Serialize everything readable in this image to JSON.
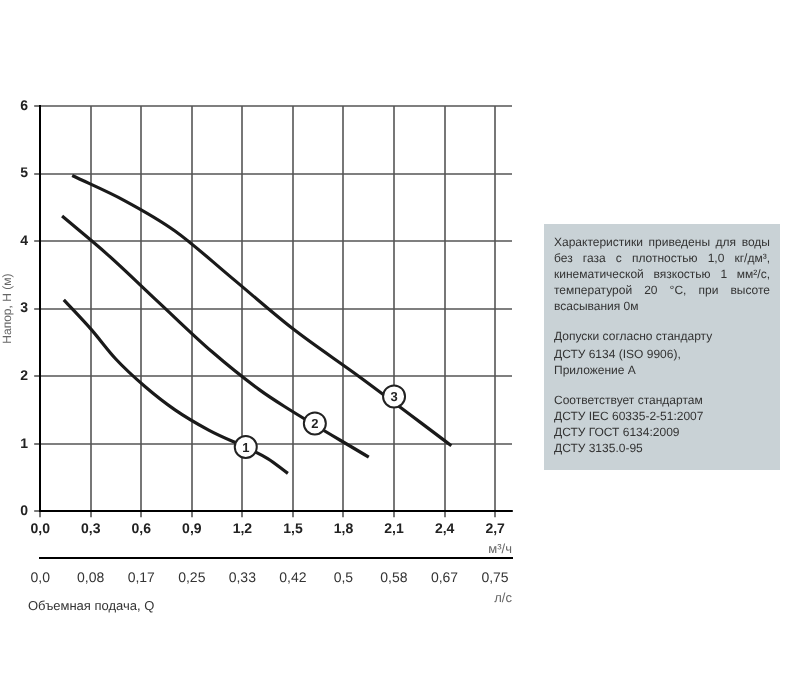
{
  "chart_data": {
    "type": "line",
    "xlabel": "м³/ч",
    "x2label": "л/с",
    "ylabel": "Напор, H (м)",
    "xlim": [
      0,
      2.8
    ],
    "xticks": [
      {
        "value": 0,
        "label": "0,0"
      },
      {
        "value": 0.3,
        "label": "0,3"
      },
      {
        "value": 0.6,
        "label": "0,6"
      },
      {
        "value": 0.9,
        "label": "0,9"
      },
      {
        "value": 1.2,
        "label": "1,2"
      },
      {
        "value": 1.5,
        "label": "1,5"
      },
      {
        "value": 1.8,
        "label": "1,8"
      },
      {
        "value": 2.1,
        "label": "2,1"
      },
      {
        "value": 2.4,
        "label": "2,4"
      },
      {
        "value": 2.7,
        "label": "2,7"
      }
    ],
    "x2lim": [
      0,
      0.778
    ],
    "x2ticks": [
      {
        "value": 0,
        "label": "0,0"
      },
      {
        "value": 0.0833,
        "label": "0,08"
      },
      {
        "value": 0.1667,
        "label": "0,17"
      },
      {
        "value": 0.25,
        "label": "0,25"
      },
      {
        "value": 0.3333,
        "label": "0,33"
      },
      {
        "value": 0.4167,
        "label": "0,42"
      },
      {
        "value": 0.5,
        "label": "0,5"
      },
      {
        "value": 0.5833,
        "label": "0,58"
      },
      {
        "value": 0.6667,
        "label": "0,67"
      },
      {
        "value": 0.75,
        "label": "0,75"
      }
    ],
    "ylim": [
      0,
      6
    ],
    "yticks": [
      0,
      1,
      2,
      3,
      4,
      5,
      6
    ],
    "grid": true,
    "legend": false,
    "marker": "none",
    "line_style": "solid",
    "series": [
      {
        "color": "#1a1a1a",
        "x": [
          0.14,
          0.3,
          0.45,
          0.62,
          0.8,
          1.0,
          1.35,
          1.47
        ],
        "values": [
          3.13,
          2.7,
          2.25,
          1.85,
          1.5,
          1.2,
          0.78,
          0.56
        ]
      },
      {
        "color": "#1a1a1a",
        "x": [
          0.13,
          0.4,
          0.7,
          1.02,
          1.3,
          1.45,
          1.95
        ],
        "values": [
          4.37,
          3.8,
          3.1,
          2.36,
          1.8,
          1.55,
          0.8
        ]
      },
      {
        "color": "#1a1a1a",
        "x": [
          0.19,
          0.5,
          0.8,
          1.13,
          1.5,
          1.9,
          2.44
        ],
        "values": [
          4.97,
          4.6,
          4.15,
          3.47,
          2.7,
          1.98,
          0.97
        ]
      }
    ],
    "annotations": [
      "Объемная подача, Q",
      "Характеристики приведены для воды без газа с плотностью 1,0 кг/дм³, кинематической вязкостью 1 мм²/с, температурой 20 °С, при высоте всасывания 0м",
      "Допуски согласно стандарту\nДСТУ 6134 (ISO 9906),\nПриложение А",
      "Соответствует стандартам\nДСТУ IEC 60335-2-51:2007\nДСТУ ГОСТ 6134:2009\nДСТУ 3135.0-95",
      {
        "text": "1",
        "x": 1.22,
        "y": 0.95
      },
      {
        "text": "2",
        "x": 1.63,
        "y": 1.3
      },
      {
        "text": "3",
        "x": 2.1,
        "y": 1.7
      }
    ]
  }
}
